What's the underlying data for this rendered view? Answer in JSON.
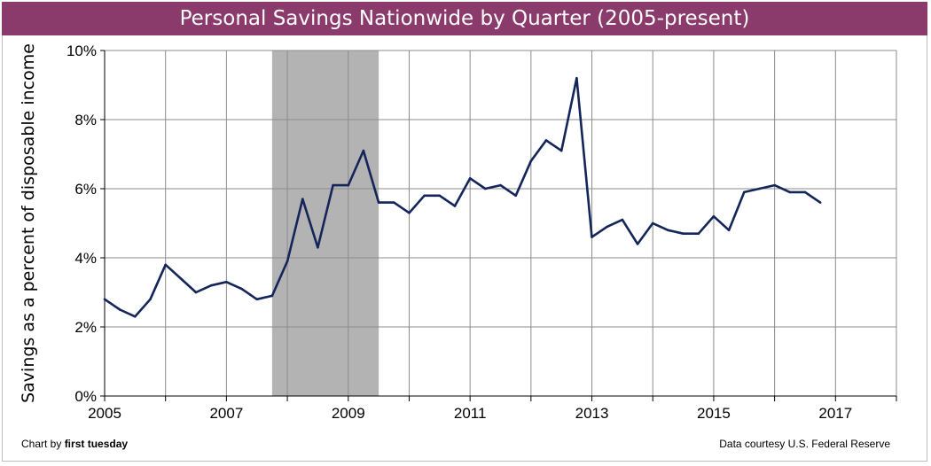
{
  "chart_data": {
    "type": "line",
    "title": "Personal Savings Nationwide by Quarter (2005-present)",
    "xlabel": "",
    "ylabel": "Savings as a percent of disposable income",
    "xlim": [
      2005,
      2018
    ],
    "ylim": [
      0,
      10
    ],
    "x_ticks": [
      "2005",
      "2007",
      "2009",
      "2011",
      "2013",
      "2015",
      "2017"
    ],
    "y_ticks": [
      "0%",
      "2%",
      "4%",
      "6%",
      "8%",
      "10%"
    ],
    "grid": true,
    "recession_shading": [
      2007.75,
      2009.5
    ],
    "line_color": "#14255a",
    "shade_color": "#b3b3b3",
    "series": [
      {
        "x": [
          2005.0,
          2005.25,
          2005.5,
          2005.75,
          2006.0,
          2006.25,
          2006.5,
          2006.75,
          2007.0,
          2007.25,
          2007.5,
          2007.75,
          2008.0,
          2008.25,
          2008.5,
          2008.75,
          2009.0,
          2009.25,
          2009.5,
          2009.75,
          2010.0,
          2010.25,
          2010.5,
          2010.75,
          2011.0,
          2011.25,
          2011.5,
          2011.75,
          2012.0,
          2012.25,
          2012.5,
          2012.75,
          2013.0,
          2013.25,
          2013.5,
          2013.75,
          2014.0,
          2014.25,
          2014.5,
          2014.75,
          2015.0,
          2015.25,
          2015.5,
          2015.75,
          2016.0,
          2016.25,
          2016.5,
          2016.75
        ],
        "values": [
          2.8,
          2.5,
          2.3,
          2.8,
          3.8,
          3.4,
          3.0,
          3.2,
          3.3,
          3.1,
          2.8,
          2.9,
          3.9,
          5.7,
          4.3,
          6.1,
          6.1,
          7.1,
          5.6,
          5.6,
          5.3,
          5.8,
          5.8,
          5.5,
          6.3,
          6.0,
          6.1,
          5.8,
          6.8,
          7.4,
          7.1,
          9.2,
          4.6,
          4.9,
          5.1,
          4.4,
          5.0,
          4.8,
          4.7,
          4.7,
          5.2,
          4.8,
          5.9,
          6.0,
          6.1,
          5.9,
          5.9,
          5.6
        ]
      }
    ]
  },
  "footer": {
    "credit_prefix": "Chart by ",
    "credit_brand": "first tuesday",
    "source": "Data courtesy U.S. Federal Reserve"
  },
  "colors": {
    "title_bar": "#8a3a6b"
  }
}
